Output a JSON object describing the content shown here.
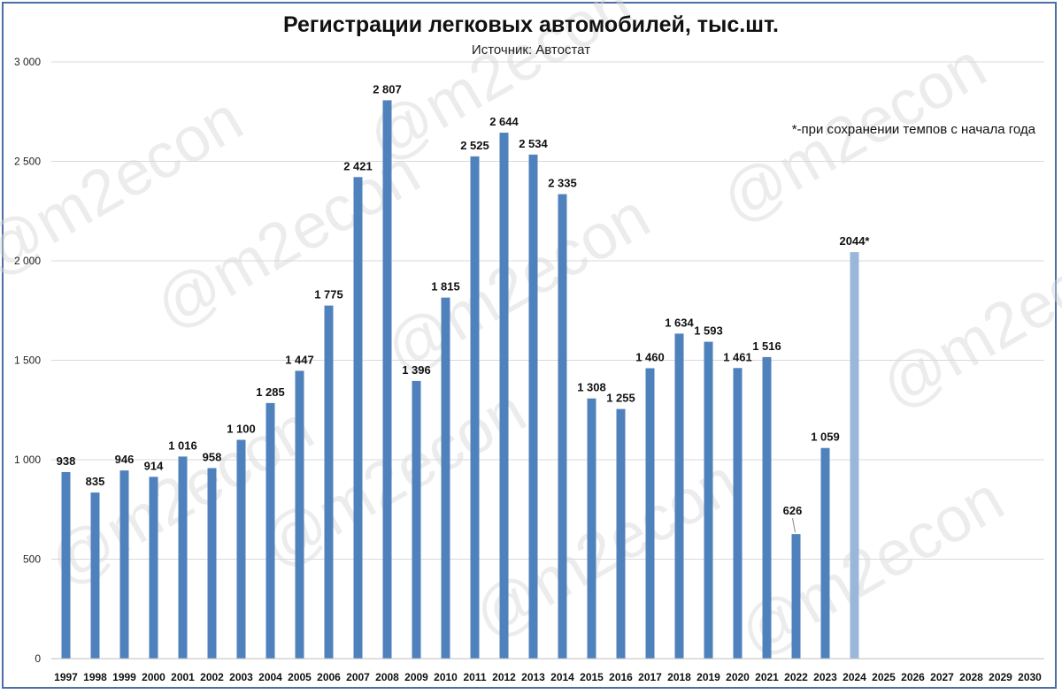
{
  "chart_data": {
    "type": "bar",
    "title": "Регистрации легковых автомобилей, тыс.шт.",
    "subtitle": "Источник: Автостат",
    "note": "*-при сохранении темпов с начала года",
    "watermark": "@m2econ",
    "xlabel": "",
    "ylabel": "",
    "ylim": [
      0,
      3000
    ],
    "yticks": [
      0,
      500,
      1000,
      1500,
      2000,
      2500,
      3000
    ],
    "ytick_labels": [
      "0",
      "500",
      "1 000",
      "1 500",
      "2 000",
      "2 500",
      "3 000"
    ],
    "grid": true,
    "categories": [
      "1997",
      "1998",
      "1999",
      "2000",
      "2001",
      "2002",
      "2003",
      "2004",
      "2005",
      "2006",
      "2007",
      "2008",
      "2009",
      "2010",
      "2011",
      "2012",
      "2013",
      "2014",
      "2015",
      "2016",
      "2017",
      "2018",
      "2019",
      "2020",
      "2021",
      "2022",
      "2023",
      "2024",
      "2025",
      "2026",
      "2027",
      "2028",
      "2029",
      "2030"
    ],
    "values": [
      938,
      835,
      946,
      914,
      1016,
      958,
      1100,
      1285,
      1447,
      1775,
      2421,
      2807,
      1396,
      1815,
      2525,
      2644,
      2534,
      2335,
      1308,
      1255,
      1460,
      1634,
      1593,
      1461,
      1516,
      626,
      1059,
      2044,
      null,
      null,
      null,
      null,
      null,
      null
    ],
    "data_labels": [
      "938",
      "835",
      "946",
      "914",
      "1 016",
      "958",
      "1 100",
      "1 285",
      "1 447",
      "1 775",
      "2 421",
      "2 807",
      "1 396",
      "1 815",
      "2 525",
      "2 644",
      "2 534",
      "2 335",
      "1 308",
      "1 255",
      "1 460",
      "1 634",
      "1 593",
      "1 461",
      "1 516",
      "626",
      "1 059",
      "2044*",
      "",
      "",
      "",
      "",
      "",
      ""
    ],
    "colors": {
      "bar": "#4f81bd",
      "forecast_bar": "#9ab7d9",
      "grid": "#d9d9d9",
      "frame": "#4a6fa5"
    },
    "forecast_index": 27
  }
}
